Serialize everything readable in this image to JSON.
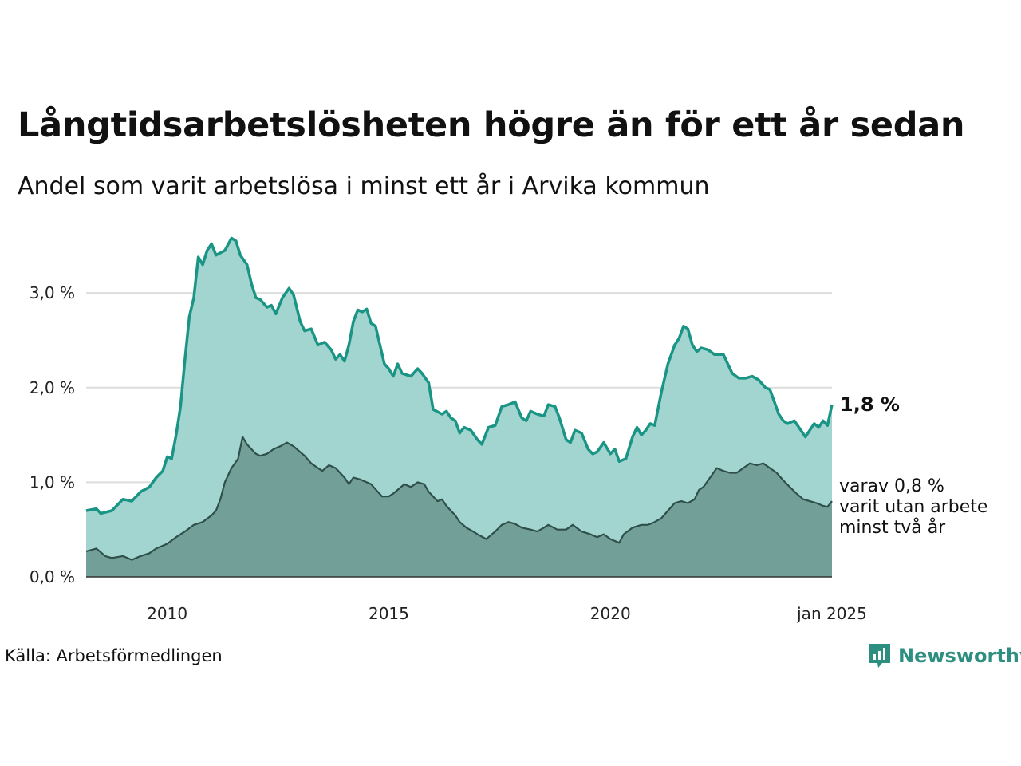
{
  "title": "Långtidsarbetslösheten högre än för ett år sedan",
  "subtitle": "Andel som varit arbetslösa i minst ett år i Arvika kommun",
  "source": "Källa: Arbetsförmedlingen",
  "brand": "Newsworthy",
  "colors": {
    "main_line": "#1a9484",
    "main_fill": "#a3d5d0",
    "sub_line": "#2f4f4a",
    "sub_fill": "#72a098",
    "grid": "#dddddd",
    "brand": "#2d8f7f"
  },
  "chart_data": {
    "type": "area",
    "title": "Långtidsarbetslösheten högre än för ett år sedan",
    "xlabel": "",
    "ylabel": "",
    "x_start": 2008.17,
    "x_end": 2025.0,
    "xlim": [
      2008.17,
      2025.0
    ],
    "ylim": [
      0,
      3.6
    ],
    "x_ticks": [
      {
        "value": 2010,
        "label": "2010"
      },
      {
        "value": 2015,
        "label": "2015"
      },
      {
        "value": 2020,
        "label": "2020"
      },
      {
        "value": 2025,
        "label": "jan 2025"
      }
    ],
    "y_ticks": [
      {
        "value": 0,
        "label": "0,0 %"
      },
      {
        "value": 1,
        "label": "1,0 %"
      },
      {
        "value": 2,
        "label": "2,0 %"
      },
      {
        "value": 3,
        "label": "3,0 %"
      }
    ],
    "series": [
      {
        "name": "Arbetslösa minst ett år",
        "end_label": "1,8 %",
        "points": [
          [
            2008.17,
            0.7
          ],
          [
            2008.4,
            0.72
          ],
          [
            2008.5,
            0.67
          ],
          [
            2008.75,
            0.7
          ],
          [
            2009.0,
            0.82
          ],
          [
            2009.2,
            0.8
          ],
          [
            2009.4,
            0.9
          ],
          [
            2009.6,
            0.95
          ],
          [
            2009.75,
            1.05
          ],
          [
            2009.9,
            1.12
          ],
          [
            2010.0,
            1.27
          ],
          [
            2010.1,
            1.25
          ],
          [
            2010.2,
            1.5
          ],
          [
            2010.3,
            1.8
          ],
          [
            2010.4,
            2.3
          ],
          [
            2010.5,
            2.75
          ],
          [
            2010.6,
            2.95
          ],
          [
            2010.7,
            3.38
          ],
          [
            2010.8,
            3.3
          ],
          [
            2010.9,
            3.45
          ],
          [
            2011.0,
            3.52
          ],
          [
            2011.1,
            3.4
          ],
          [
            2011.3,
            3.45
          ],
          [
            2011.45,
            3.58
          ],
          [
            2011.55,
            3.55
          ],
          [
            2011.65,
            3.4
          ],
          [
            2011.8,
            3.3
          ],
          [
            2011.9,
            3.1
          ],
          [
            2012.0,
            2.95
          ],
          [
            2012.1,
            2.93
          ],
          [
            2012.25,
            2.85
          ],
          [
            2012.35,
            2.87
          ],
          [
            2012.45,
            2.78
          ],
          [
            2012.6,
            2.95
          ],
          [
            2012.75,
            3.05
          ],
          [
            2012.85,
            2.98
          ],
          [
            2013.0,
            2.7
          ],
          [
            2013.1,
            2.6
          ],
          [
            2013.25,
            2.62
          ],
          [
            2013.4,
            2.45
          ],
          [
            2013.55,
            2.48
          ],
          [
            2013.7,
            2.4
          ],
          [
            2013.8,
            2.3
          ],
          [
            2013.9,
            2.35
          ],
          [
            2014.0,
            2.28
          ],
          [
            2014.1,
            2.45
          ],
          [
            2014.2,
            2.7
          ],
          [
            2014.3,
            2.82
          ],
          [
            2014.4,
            2.8
          ],
          [
            2014.5,
            2.83
          ],
          [
            2014.6,
            2.68
          ],
          [
            2014.7,
            2.65
          ],
          [
            2014.8,
            2.45
          ],
          [
            2014.9,
            2.25
          ],
          [
            2015.0,
            2.2
          ],
          [
            2015.1,
            2.12
          ],
          [
            2015.2,
            2.25
          ],
          [
            2015.3,
            2.15
          ],
          [
            2015.5,
            2.12
          ],
          [
            2015.65,
            2.2
          ],
          [
            2015.75,
            2.15
          ],
          [
            2015.9,
            2.05
          ],
          [
            2016.0,
            1.77
          ],
          [
            2016.2,
            1.72
          ],
          [
            2016.3,
            1.75
          ],
          [
            2016.4,
            1.68
          ],
          [
            2016.5,
            1.65
          ],
          [
            2016.6,
            1.52
          ],
          [
            2016.7,
            1.58
          ],
          [
            2016.85,
            1.55
          ],
          [
            2017.0,
            1.45
          ],
          [
            2017.1,
            1.4
          ],
          [
            2017.25,
            1.58
          ],
          [
            2017.4,
            1.6
          ],
          [
            2017.55,
            1.8
          ],
          [
            2017.7,
            1.82
          ],
          [
            2017.85,
            1.85
          ],
          [
            2018.0,
            1.68
          ],
          [
            2018.1,
            1.65
          ],
          [
            2018.2,
            1.75
          ],
          [
            2018.35,
            1.72
          ],
          [
            2018.5,
            1.7
          ],
          [
            2018.6,
            1.82
          ],
          [
            2018.75,
            1.8
          ],
          [
            2018.85,
            1.68
          ],
          [
            2019.0,
            1.45
          ],
          [
            2019.1,
            1.42
          ],
          [
            2019.2,
            1.55
          ],
          [
            2019.35,
            1.52
          ],
          [
            2019.5,
            1.35
          ],
          [
            2019.6,
            1.3
          ],
          [
            2019.7,
            1.32
          ],
          [
            2019.85,
            1.42
          ],
          [
            2020.0,
            1.3
          ],
          [
            2020.1,
            1.35
          ],
          [
            2020.2,
            1.22
          ],
          [
            2020.35,
            1.25
          ],
          [
            2020.5,
            1.48
          ],
          [
            2020.6,
            1.58
          ],
          [
            2020.7,
            1.5
          ],
          [
            2020.8,
            1.55
          ],
          [
            2020.9,
            1.62
          ],
          [
            2021.0,
            1.6
          ],
          [
            2021.15,
            1.95
          ],
          [
            2021.3,
            2.25
          ],
          [
            2021.45,
            2.45
          ],
          [
            2021.55,
            2.52
          ],
          [
            2021.65,
            2.65
          ],
          [
            2021.75,
            2.62
          ],
          [
            2021.85,
            2.45
          ],
          [
            2021.95,
            2.38
          ],
          [
            2022.05,
            2.42
          ],
          [
            2022.2,
            2.4
          ],
          [
            2022.35,
            2.35
          ],
          [
            2022.55,
            2.35
          ],
          [
            2022.65,
            2.25
          ],
          [
            2022.75,
            2.15
          ],
          [
            2022.9,
            2.1
          ],
          [
            2023.05,
            2.1
          ],
          [
            2023.2,
            2.12
          ],
          [
            2023.35,
            2.08
          ],
          [
            2023.5,
            2.0
          ],
          [
            2023.6,
            1.98
          ],
          [
            2023.7,
            1.85
          ],
          [
            2023.8,
            1.72
          ],
          [
            2023.9,
            1.65
          ],
          [
            2024.0,
            1.62
          ],
          [
            2024.15,
            1.65
          ],
          [
            2024.3,
            1.55
          ],
          [
            2024.4,
            1.48
          ],
          [
            2024.5,
            1.55
          ],
          [
            2024.6,
            1.62
          ],
          [
            2024.7,
            1.58
          ],
          [
            2024.8,
            1.65
          ],
          [
            2024.9,
            1.6
          ],
          [
            2025.0,
            1.82
          ]
        ]
      },
      {
        "name": "varav minst två år",
        "end_label_lines": [
          "varav 0,8 %",
          "varit utan arbete",
          "minst två år"
        ],
        "points": [
          [
            2008.17,
            0.27
          ],
          [
            2008.4,
            0.3
          ],
          [
            2008.6,
            0.22
          ],
          [
            2008.75,
            0.2
          ],
          [
            2009.0,
            0.22
          ],
          [
            2009.2,
            0.18
          ],
          [
            2009.4,
            0.22
          ],
          [
            2009.6,
            0.25
          ],
          [
            2009.75,
            0.3
          ],
          [
            2010.0,
            0.35
          ],
          [
            2010.2,
            0.42
          ],
          [
            2010.4,
            0.48
          ],
          [
            2010.6,
            0.55
          ],
          [
            2010.8,
            0.58
          ],
          [
            2011.0,
            0.65
          ],
          [
            2011.1,
            0.7
          ],
          [
            2011.2,
            0.82
          ],
          [
            2011.3,
            1.0
          ],
          [
            2011.45,
            1.15
          ],
          [
            2011.6,
            1.25
          ],
          [
            2011.7,
            1.48
          ],
          [
            2011.8,
            1.4
          ],
          [
            2011.9,
            1.35
          ],
          [
            2012.0,
            1.3
          ],
          [
            2012.1,
            1.28
          ],
          [
            2012.25,
            1.3
          ],
          [
            2012.4,
            1.35
          ],
          [
            2012.55,
            1.38
          ],
          [
            2012.7,
            1.42
          ],
          [
            2012.85,
            1.38
          ],
          [
            2013.0,
            1.32
          ],
          [
            2013.1,
            1.28
          ],
          [
            2013.25,
            1.2
          ],
          [
            2013.4,
            1.15
          ],
          [
            2013.5,
            1.12
          ],
          [
            2013.65,
            1.18
          ],
          [
            2013.8,
            1.15
          ],
          [
            2013.9,
            1.1
          ],
          [
            2014.0,
            1.05
          ],
          [
            2014.1,
            0.98
          ],
          [
            2014.2,
            1.05
          ],
          [
            2014.35,
            1.03
          ],
          [
            2014.5,
            1.0
          ],
          [
            2014.6,
            0.98
          ],
          [
            2014.75,
            0.9
          ],
          [
            2014.85,
            0.85
          ],
          [
            2015.0,
            0.85
          ],
          [
            2015.1,
            0.88
          ],
          [
            2015.2,
            0.92
          ],
          [
            2015.35,
            0.98
          ],
          [
            2015.5,
            0.95
          ],
          [
            2015.65,
            1.0
          ],
          [
            2015.8,
            0.98
          ],
          [
            2015.9,
            0.9
          ],
          [
            2016.0,
            0.85
          ],
          [
            2016.1,
            0.8
          ],
          [
            2016.2,
            0.82
          ],
          [
            2016.3,
            0.75
          ],
          [
            2016.4,
            0.7
          ],
          [
            2016.5,
            0.65
          ],
          [
            2016.6,
            0.58
          ],
          [
            2016.75,
            0.52
          ],
          [
            2016.9,
            0.48
          ],
          [
            2017.0,
            0.45
          ],
          [
            2017.2,
            0.4
          ],
          [
            2017.4,
            0.48
          ],
          [
            2017.55,
            0.55
          ],
          [
            2017.7,
            0.58
          ],
          [
            2017.85,
            0.56
          ],
          [
            2018.0,
            0.52
          ],
          [
            2018.2,
            0.5
          ],
          [
            2018.35,
            0.48
          ],
          [
            2018.5,
            0.52
          ],
          [
            2018.6,
            0.55
          ],
          [
            2018.8,
            0.5
          ],
          [
            2019.0,
            0.5
          ],
          [
            2019.15,
            0.55
          ],
          [
            2019.35,
            0.48
          ],
          [
            2019.55,
            0.45
          ],
          [
            2019.7,
            0.42
          ],
          [
            2019.85,
            0.45
          ],
          [
            2020.0,
            0.4
          ],
          [
            2020.2,
            0.36
          ],
          [
            2020.3,
            0.45
          ],
          [
            2020.5,
            0.52
          ],
          [
            2020.7,
            0.55
          ],
          [
            2020.85,
            0.55
          ],
          [
            2021.0,
            0.58
          ],
          [
            2021.15,
            0.62
          ],
          [
            2021.3,
            0.7
          ],
          [
            2021.45,
            0.78
          ],
          [
            2021.6,
            0.8
          ],
          [
            2021.75,
            0.78
          ],
          [
            2021.9,
            0.82
          ],
          [
            2022.0,
            0.92
          ],
          [
            2022.1,
            0.95
          ],
          [
            2022.25,
            1.05
          ],
          [
            2022.4,
            1.15
          ],
          [
            2022.55,
            1.12
          ],
          [
            2022.7,
            1.1
          ],
          [
            2022.85,
            1.1
          ],
          [
            2023.0,
            1.15
          ],
          [
            2023.15,
            1.2
          ],
          [
            2023.3,
            1.18
          ],
          [
            2023.45,
            1.2
          ],
          [
            2023.6,
            1.15
          ],
          [
            2023.75,
            1.1
          ],
          [
            2023.9,
            1.02
          ],
          [
            2024.05,
            0.95
          ],
          [
            2024.2,
            0.88
          ],
          [
            2024.35,
            0.82
          ],
          [
            2024.5,
            0.8
          ],
          [
            2024.65,
            0.78
          ],
          [
            2024.8,
            0.75
          ],
          [
            2024.9,
            0.74
          ],
          [
            2025.0,
            0.8
          ]
        ]
      }
    ]
  }
}
